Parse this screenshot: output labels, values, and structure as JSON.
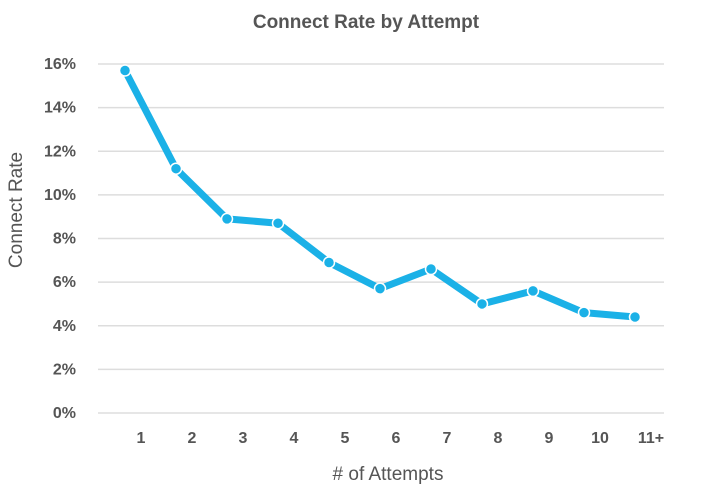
{
  "chart_data": {
    "type": "line",
    "title": "Connect Rate by Attempt",
    "xlabel": "# of Attempts",
    "ylabel": "Connect Rate",
    "categories": [
      "1",
      "2",
      "3",
      "4",
      "5",
      "6",
      "7",
      "8",
      "9",
      "10",
      "11+"
    ],
    "y_ticks": [
      "0%",
      "2%",
      "4%",
      "6%",
      "8%",
      "10%",
      "12%",
      "14%",
      "16%"
    ],
    "ylim": [
      0,
      16
    ],
    "grid": true,
    "legend": "none",
    "series": [
      {
        "values": [
          15.7,
          11.2,
          8.9,
          8.7,
          6.9,
          5.7,
          6.6,
          5.0,
          5.6,
          4.6,
          4.4
        ],
        "color": "#1bb1e7"
      }
    ]
  }
}
